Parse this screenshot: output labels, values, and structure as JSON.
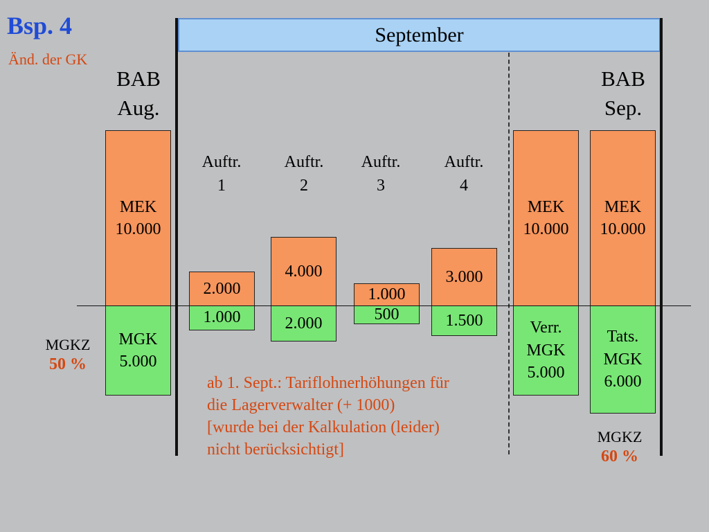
{
  "title": "Bsp. 4",
  "subtitle": "Änd. der GK",
  "month": "September",
  "bab_aug": {
    "line1": "BAB",
    "line2": "Aug."
  },
  "bab_sep": {
    "line1": "BAB",
    "line2": "Sep."
  },
  "orders": [
    {
      "line1": "Auftr.",
      "line2": "1",
      "mek": "2.000",
      "mgk": "1.000"
    },
    {
      "line1": "Auftr.",
      "line2": "2",
      "mek": "4.000",
      "mgk": "2.000"
    },
    {
      "line1": "Auftr.",
      "line2": "3",
      "mek": "1.000",
      "mgk": "500"
    },
    {
      "line1": "Auftr.",
      "line2": "4",
      "mek": "3.000",
      "mgk": "1.500"
    }
  ],
  "aug_column": {
    "mek_label": "MEK",
    "mek_value": "10.000",
    "mgk_label": "MGK",
    "mgk_value": "5.000"
  },
  "verr_column": {
    "mek_label": "MEK",
    "mek_value": "10.000",
    "mgk_line1": "Verr.",
    "mgk_line2": "MGK",
    "mgk_value": "5.000"
  },
  "tats_column": {
    "mek_label": "MEK",
    "mek_value": "10.000",
    "mgk_line1": "Tats.",
    "mgk_line2": "MGK",
    "mgk_value": "6.000"
  },
  "mgkz_left": {
    "label": "MGKZ",
    "value": "50 %"
  },
  "mgkz_right": {
    "label": "MGKZ",
    "value": "60 %"
  },
  "note": {
    "line1": "ab 1. Sept.: Tariflohnerhöhungen für",
    "line2": "die Lagerverwalter (+ 1000)",
    "line3": "[wurde bei der Kalkulation (leider)",
    "line4": "nicht berücksichtigt]"
  },
  "colors": {
    "mek": "#f6955c",
    "mgk": "#78e675",
    "title": "#1f4bd6",
    "accent": "#d44812",
    "header": "#a9d2f4"
  }
}
